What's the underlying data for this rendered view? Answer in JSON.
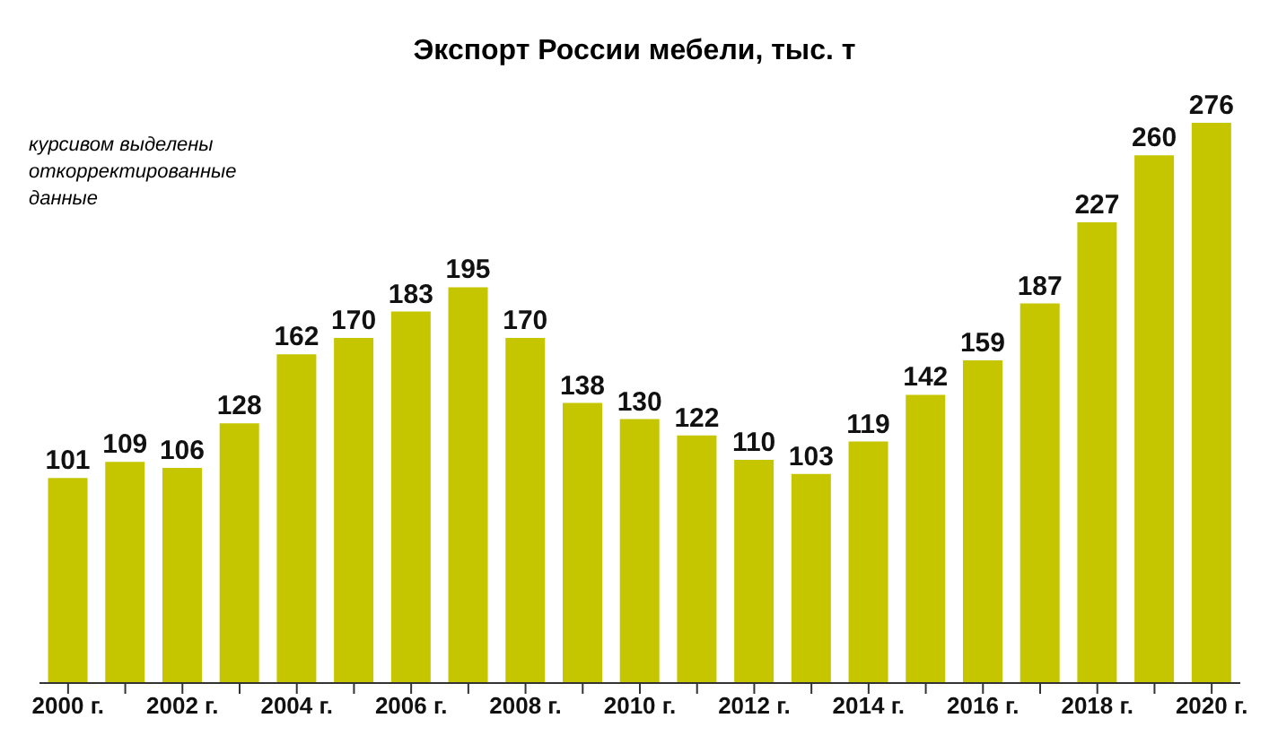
{
  "chart_data": {
    "type": "bar",
    "title": "Экспорт России мебели, тыс. т",
    "categories": [
      "2000 г.",
      null,
      "2002 г.",
      null,
      "2004 г.",
      null,
      "2006 г.",
      null,
      "2008 г.",
      null,
      "2010 г.",
      null,
      "2012 г.",
      null,
      "2014 г.",
      null,
      "2016 г.",
      null,
      "2018 г.",
      null,
      "2020 г."
    ],
    "values": [
      101,
      109,
      106,
      128,
      162,
      170,
      183,
      195,
      170,
      138,
      130,
      122,
      110,
      103,
      119,
      142,
      159,
      187,
      227,
      260,
      276
    ],
    "color": "#c5c600",
    "data_labels": true,
    "annotations": [
      "курсивом выделены откорректированные данные"
    ]
  }
}
